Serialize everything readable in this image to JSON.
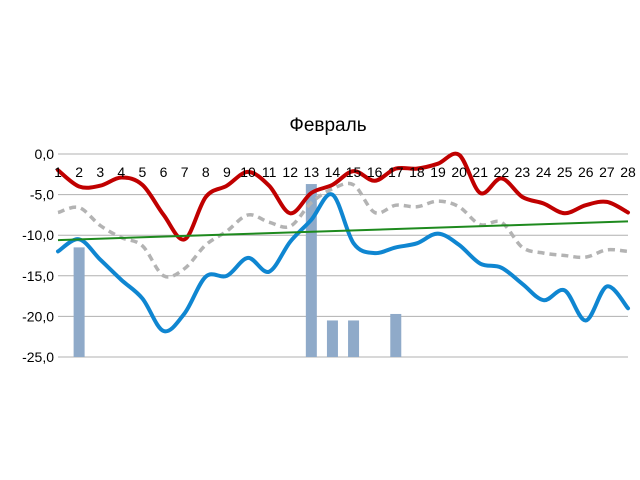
{
  "chart_data": {
    "type": "line",
    "title": "Февраль",
    "xlabel": "",
    "ylabel": "",
    "categories": [
      "1",
      "2",
      "3",
      "4",
      "5",
      "6",
      "7",
      "8",
      "9",
      "10",
      "11",
      "12",
      "13",
      "14",
      "15",
      "16",
      "17",
      "18",
      "19",
      "20",
      "21",
      "22",
      "23",
      "24",
      "25",
      "26",
      "27",
      "28"
    ],
    "ylim": [
      -25,
      0
    ],
    "yticks": [
      0,
      -5,
      -10,
      -15,
      -20,
      -25
    ],
    "ytick_labels": [
      "0,0",
      "-5,0",
      "-10,0",
      "-15,0",
      "-20,0",
      "-25,0"
    ],
    "grid": true,
    "series": [
      {
        "kind": "bar",
        "color": "#8faac9",
        "values": [
          null,
          -11.5,
          null,
          null,
          null,
          null,
          null,
          null,
          null,
          null,
          null,
          null,
          -3.7,
          -20.5,
          -20.5,
          null,
          -19.7,
          null,
          null,
          null,
          null,
          null,
          null,
          null,
          null,
          null,
          null,
          null
        ]
      },
      {
        "kind": "line",
        "style": "dashed",
        "color": "#b3b3b3",
        "values": [
          -7.2,
          -6.6,
          -8.8,
          -10.3,
          -11.3,
          -15.0,
          -14.1,
          -11.2,
          -9.5,
          -7.5,
          -8.4,
          -8.9,
          -6.0,
          -4.3,
          -3.8,
          -7.2,
          -6.3,
          -6.5,
          -5.8,
          -6.5,
          -8.7,
          -8.4,
          -11.5,
          -12.2,
          -12.5,
          -12.7,
          -11.8,
          -12.0
        ]
      },
      {
        "kind": "line",
        "color": "#c00000",
        "values": [
          -2.0,
          -4.0,
          -3.9,
          -2.9,
          -3.8,
          -7.5,
          -10.5,
          -5.3,
          -3.9,
          -2.2,
          -3.9,
          -7.3,
          -4.8,
          -3.8,
          -2.1,
          -3.3,
          -1.8,
          -1.8,
          -1.2,
          -0.1,
          -4.8,
          -3.0,
          -5.3,
          -6.1,
          -7.3,
          -6.3,
          -5.9,
          -7.2
        ]
      },
      {
        "kind": "line",
        "color": "#0f86d1",
        "values": [
          -12.0,
          -10.5,
          -13.0,
          -15.5,
          -17.8,
          -21.8,
          -19.6,
          -15.1,
          -15.0,
          -12.8,
          -14.5,
          -10.8,
          -8.1,
          -5.0,
          -11.0,
          -12.2,
          -11.5,
          -11.0,
          -9.8,
          -11.2,
          -13.5,
          -14.0,
          -16.0,
          -18.0,
          -16.8,
          -20.5,
          -16.3,
          -19.0
        ]
      },
      {
        "kind": "line",
        "style": "trend",
        "color": "#1e8a1e",
        "values": [
          -10.6,
          -8.3
        ],
        "x": [
          "1",
          "28"
        ]
      }
    ]
  }
}
